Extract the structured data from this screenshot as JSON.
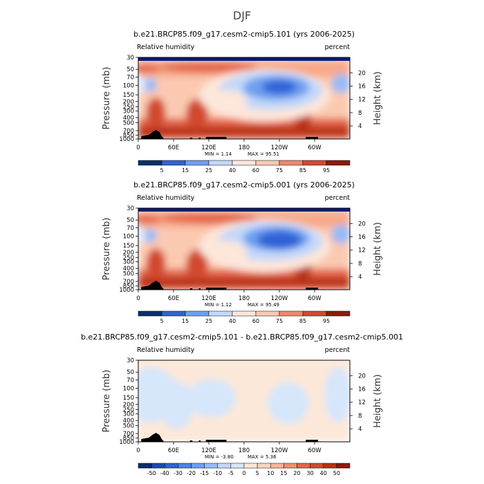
{
  "figure": {
    "title": "DJF"
  },
  "colors": {
    "rh_scale": [
      "#08306b",
      "#1c4ab0",
      "#2f64d6",
      "#4a82e8",
      "#6e9ff0",
      "#97bbf5",
      "#c2d8f9",
      "#e3eefc",
      "#fde6da",
      "#fbc9b1",
      "#f7a98a",
      "#f0876a",
      "#e4654a",
      "#d24a2f",
      "#b83216",
      "#8e1a0a"
    ],
    "diff_scale": [
      "#08306b",
      "#1c4ab0",
      "#2f64d6",
      "#4a82e8",
      "#6e9ff0",
      "#97bbf5",
      "#c2d8f9",
      "#d6e6fb",
      "#fce8d8",
      "#fbd2bd",
      "#f7b498",
      "#f0906f",
      "#e4654a",
      "#d24a2f",
      "#b83216",
      "#8e1a0a"
    ],
    "topography": "#000000",
    "top_band": "#0a1a7a"
  },
  "chart_data": [
    {
      "type": "heatmap",
      "title": "b.e21.BRCP85.f09_g17.cesm2-cmip5.101 (yrs 2006-2025)",
      "left_label": "Relative humidity",
      "right_label": "percent",
      "ylabel": "Pressure (mb)",
      "ylabel_right": "Height (km)",
      "min_text": "MIN =    1.14",
      "max_text": "MAX =   95.51",
      "min": 1.14,
      "max": 95.51,
      "colorbar_ticks": [
        "5",
        "15",
        "25",
        "40",
        "60",
        "75",
        "85",
        "95"
      ],
      "variant": "a"
    },
    {
      "type": "heatmap",
      "title": "b.e21.BRCP85.f09_g17.cesm2-cmip5.001 (yrs 2006-2025)",
      "left_label": "Relative humidity",
      "right_label": "percent",
      "ylabel": "Pressure (mb)",
      "ylabel_right": "Height (km)",
      "min_text": "MIN =    1.12",
      "max_text": "MAX =   95.49",
      "min": 1.12,
      "max": 95.49,
      "colorbar_ticks": [
        "5",
        "15",
        "25",
        "40",
        "60",
        "75",
        "85",
        "95"
      ],
      "variant": "b"
    },
    {
      "type": "heatmap",
      "title": "b.e21.BRCP85.f09_g17.cesm2-cmip5.101 - b.e21.BRCP85.f09_g17.cesm2-cmip5.001",
      "left_label": "Relative humidity",
      "right_label": "percent",
      "ylabel": "Pressure (mb)",
      "ylabel_right": "Height (km)",
      "min_text": "MIN =   -3.80",
      "max_text": "MAX =    5.36",
      "min": -3.8,
      "max": 5.36,
      "colorbar_ticks": [
        "-50",
        "-40",
        "-30",
        "-20",
        "-15",
        "-10",
        "-5",
        "0",
        "5",
        "10",
        "15",
        "20",
        "30",
        "40",
        "50"
      ],
      "variant": "diff"
    }
  ],
  "axes": {
    "x_ticks": [
      "0",
      "60E",
      "120E",
      "180",
      "120W",
      "60W"
    ],
    "x_tick_lon": [
      0,
      60,
      120,
      180,
      240,
      300
    ],
    "x_range": [
      0,
      360
    ],
    "p_ticks": [
      "30",
      "50",
      "70",
      "100",
      "150",
      "200",
      "250",
      "300",
      "400",
      "500",
      "700",
      "850",
      "1000"
    ],
    "p_ticks_values": [
      30,
      50,
      70,
      100,
      150,
      200,
      250,
      300,
      400,
      500,
      700,
      850,
      1000
    ],
    "p_range": [
      30,
      1000
    ],
    "h_ticks": [
      "20",
      "16",
      "12",
      "8",
      "4"
    ],
    "h_ticks_values": [
      20,
      16,
      12,
      8,
      4
    ]
  }
}
